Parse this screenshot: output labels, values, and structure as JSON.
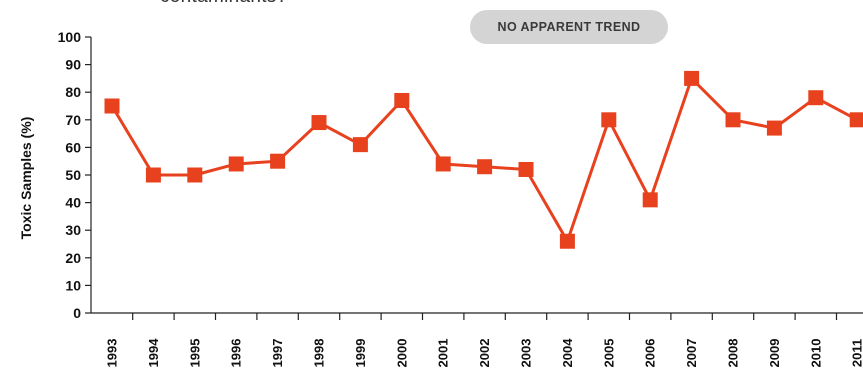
{
  "header": {
    "title_fragment": "contaminants?",
    "trend_label": "NO APPARENT TREND"
  },
  "chart_data": {
    "type": "line",
    "title": "",
    "xlabel": "",
    "ylabel": "Toxic Samples (%)",
    "ylim": [
      0,
      100
    ],
    "yticks": [
      0,
      10,
      20,
      30,
      40,
      50,
      60,
      70,
      80,
      90,
      100
    ],
    "grid": false,
    "categories": [
      "1993",
      "1994",
      "1995",
      "1996",
      "1997",
      "1998",
      "1999",
      "2000",
      "2001",
      "2002",
      "2003",
      "2004",
      "2005",
      "2006",
      "2007",
      "2008",
      "2009",
      "2010",
      "2011"
    ],
    "series": [
      {
        "values": [
          75,
          50,
          50,
          54,
          55,
          69,
          61,
          77,
          54,
          53,
          52,
          26,
          70,
          41,
          85,
          70,
          67,
          78,
          70
        ],
        "color": "#e8411e",
        "marker": "square"
      }
    ]
  }
}
